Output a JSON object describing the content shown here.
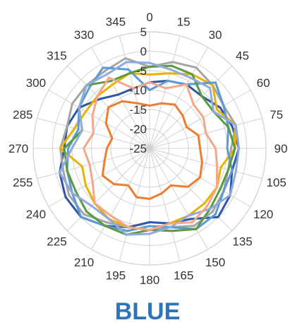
{
  "chart_data": {
    "type": "radar",
    "title": "BLUE",
    "angles": [
      0,
      15,
      30,
      45,
      60,
      75,
      90,
      105,
      120,
      135,
      150,
      165,
      180,
      195,
      210,
      225,
      240,
      255,
      270,
      285,
      300,
      315,
      330,
      345
    ],
    "angle_labels": [
      "0",
      "15",
      "30",
      "45",
      "60",
      "75",
      "90",
      "105",
      "120",
      "135",
      "150",
      "165",
      "180",
      "195",
      "210",
      "225",
      "240",
      "255",
      "270",
      "285",
      "300",
      "315",
      "330",
      "345"
    ],
    "radial_ticks": [
      -25,
      -20,
      -15,
      -10,
      -5,
      0,
      5
    ],
    "radial_tick_labels": [
      "-25",
      "-20",
      "-15",
      "-10",
      "-5",
      "0",
      "5"
    ],
    "rlim": [
      -25,
      5
    ],
    "grid": true,
    "legend": "none",
    "series": [
      {
        "color": "#2F55A4",
        "values": [
          -8,
          -7,
          -6,
          -6,
          -4,
          -3,
          -2,
          -3,
          -1,
          0,
          -4,
          -5,
          -6,
          -4,
          -2,
          0,
          0,
          -1,
          -3,
          -3,
          -4,
          -7,
          -9,
          -9
        ]
      },
      {
        "color": "#ED7D31",
        "values": [
          -14,
          -13,
          -12,
          -13,
          -14,
          -12,
          -12,
          -11,
          -10,
          -11,
          -14,
          -13,
          -12,
          -12,
          -14,
          -12,
          -11,
          -13,
          -14,
          -15,
          -12,
          -10,
          -11,
          -13
        ]
      },
      {
        "color": "#A5A5A5",
        "values": [
          -4,
          -2,
          -1,
          -2,
          -3,
          -2,
          -4,
          -4,
          -3,
          -2,
          -2,
          -4,
          -4,
          -4,
          -3,
          -1,
          -1,
          -2,
          -2,
          -3,
          -2,
          -2,
          -2,
          -1
        ]
      },
      {
        "color": "#E9B100",
        "values": [
          -6,
          -5,
          -3,
          -2,
          -5,
          -2,
          -3,
          -6,
          -5,
          -5,
          -5,
          -5,
          -4,
          -4,
          -4,
          -5,
          -6,
          -7,
          -2,
          -5,
          -6,
          -6,
          -6,
          -5
        ]
      },
      {
        "color": "#5B9BD5",
        "values": [
          -10,
          -7,
          -6,
          -1,
          -3,
          -4,
          -5,
          -3,
          -3,
          -1,
          -1,
          -4,
          -5,
          -3,
          -2,
          0,
          -2,
          -3,
          -4,
          -6,
          -4,
          -3,
          -1,
          -4
        ]
      },
      {
        "color": "#5B9A3F",
        "values": [
          -4,
          -3,
          -3,
          -6,
          -6,
          -4,
          -3,
          -4,
          -4,
          -3,
          -1,
          -3,
          -4,
          -2,
          -2,
          -2,
          -3,
          -3,
          -3,
          -7,
          -4,
          -2,
          -5,
          -5
        ]
      },
      {
        "color": "#8FAADC",
        "values": [
          -3,
          -4,
          -4,
          -3,
          -6,
          -2,
          -2,
          -2,
          -1,
          -3,
          -5,
          -4,
          -3,
          -2,
          -4,
          -4,
          -2,
          -1,
          -5,
          -7,
          -4,
          -2,
          -3,
          -2
        ]
      },
      {
        "color": "#F4A689",
        "values": [
          -8,
          -9,
          -6,
          -9,
          -9,
          -10,
          -8,
          -7,
          -5,
          -4,
          -3,
          -5,
          -4,
          -4,
          -5,
          -5,
          -8,
          -9,
          -8,
          -10,
          -8,
          -6,
          -4,
          -9
        ]
      }
    ]
  }
}
